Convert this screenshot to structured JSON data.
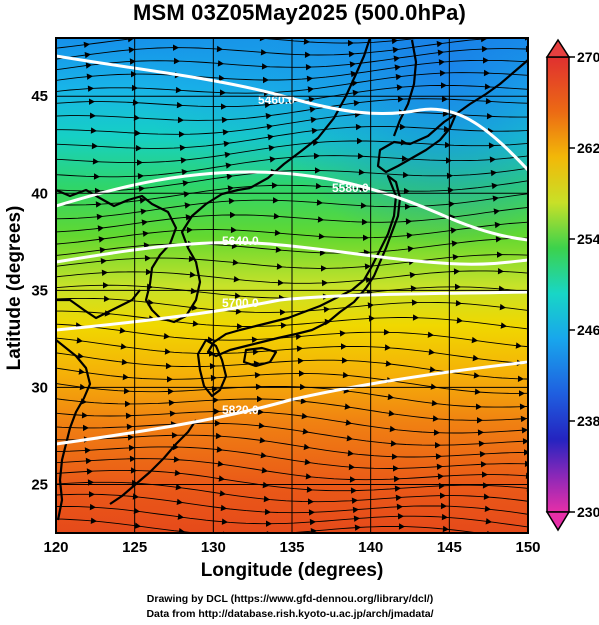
{
  "title": "MSM 03Z05May2025 (500.0hPa)",
  "map": {
    "region": "Japan and surrounding seas",
    "projection": "equirectangular",
    "variable": "500 hPa temperature (K) with wind streamlines and geopotential height contours",
    "lon_range": [
      120,
      150
    ],
    "lat_range": [
      22.5,
      48
    ],
    "x_axis_label": "Longitude (degrees)",
    "y_axis_label": "Latitude  (degrees)",
    "x_ticks": [
      "120",
      "125",
      "130",
      "135",
      "140",
      "145",
      "150"
    ],
    "y_ticks": [
      "25",
      "30",
      "35",
      "40",
      "45"
    ],
    "grid_lines": true,
    "contour_labels": [
      "5460.0",
      "5580.0",
      "5640.0",
      "5700.0",
      "5820.0"
    ],
    "contour_color": "#ffffff",
    "coastline_color": "#000000",
    "streamline_color": "#000000",
    "wind_direction": "westerly"
  },
  "colorbar": {
    "position": "right",
    "min": 230,
    "max": 270,
    "tick_labels": [
      "270",
      "262",
      "254",
      "246",
      "238",
      "230"
    ],
    "colors": [
      "#e62fa8",
      "#2030c8",
      "#1f9aee",
      "#1ad6d0",
      "#3ad24a",
      "#b4e02a",
      "#f4d000",
      "#f08a10",
      "#e84818",
      "#e03030"
    ]
  },
  "credits": {
    "line1": "Drawing by DCL (https://www.gfd-dennou.org/library/dcl/)",
    "line2": "Data from http://database.rish.kyoto-u.ac.jp/arch/jmadata/"
  }
}
